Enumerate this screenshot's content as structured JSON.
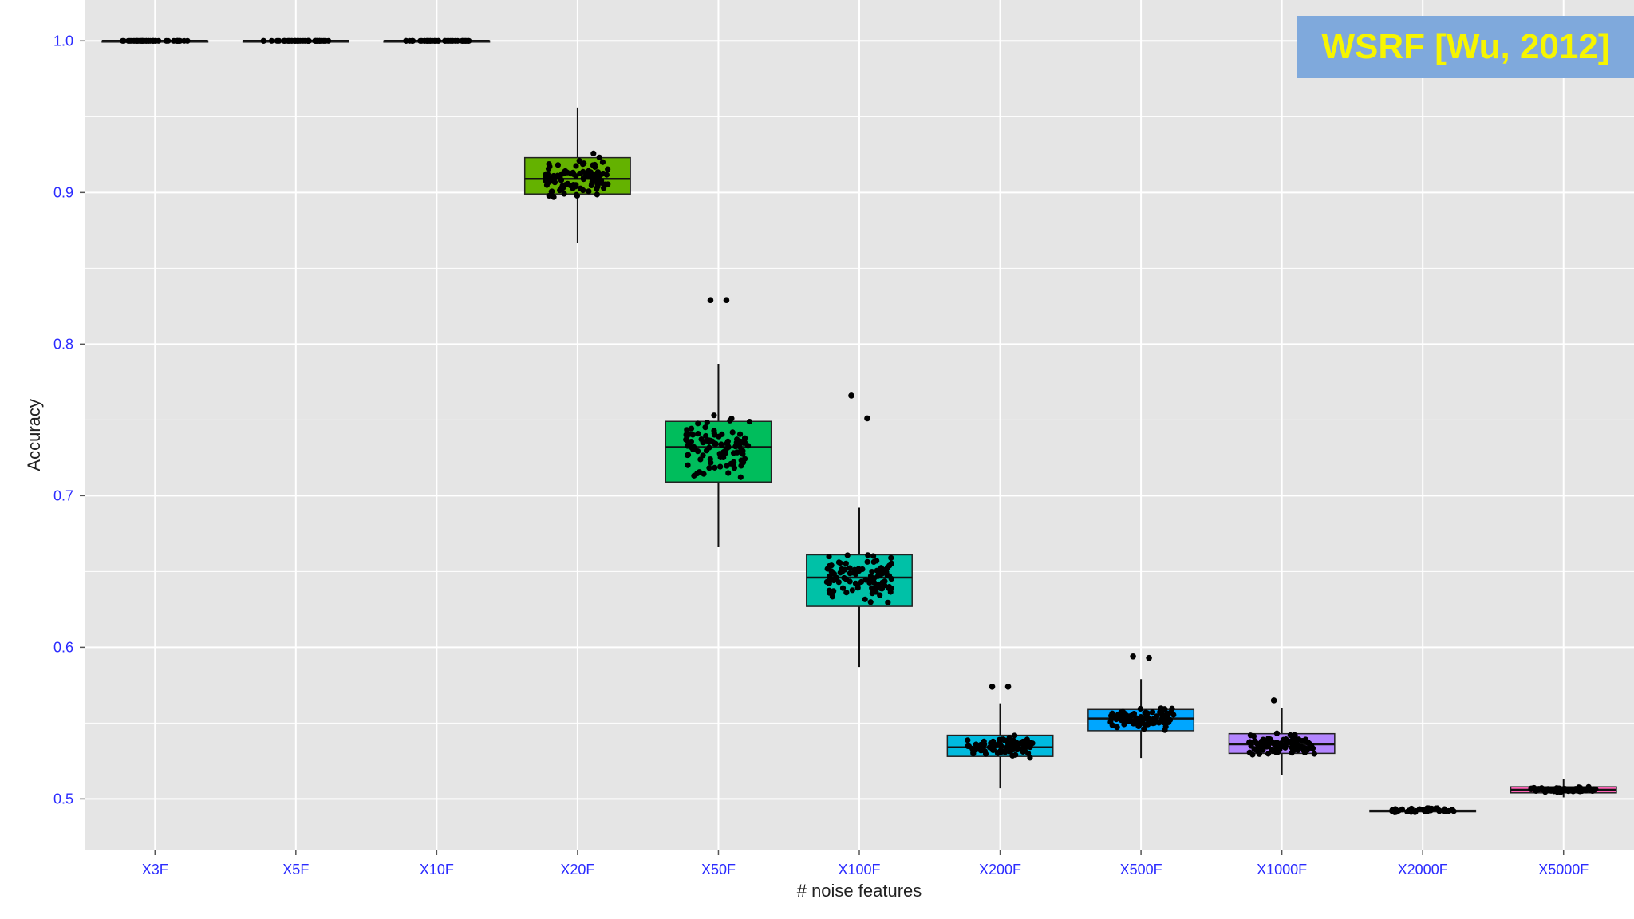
{
  "colors": {
    "panel_bg": "#e5e5e5",
    "grid": "#ffffff",
    "tick_text": "#2b2bff",
    "badge_bg": "#7fa9dc",
    "badge_text": "#f7f500",
    "point": "#000000"
  },
  "annotation": {
    "text": "WSRF [Wu, 2012]"
  },
  "chart_data": {
    "type": "boxplot",
    "title": "",
    "xlabel": "# noise features",
    "ylabel": "Accuracy",
    "ylim": [
      0.466,
      1.027
    ],
    "yticks": [
      "0.5",
      "0.6",
      "0.7",
      "0.8",
      "0.9",
      "1.0"
    ],
    "grid": true,
    "categories": [
      "X3F",
      "X5F",
      "X10F",
      "X20F",
      "X50F",
      "X100F",
      "X200F",
      "X500F",
      "X1000F",
      "X2000F",
      "X5000F"
    ],
    "boxes": [
      {
        "category": "X3F",
        "q1": 1.0,
        "median": 1.0,
        "q3": 1.0,
        "whisker_low": 1.0,
        "whisker_high": 1.0,
        "fill": "#f8766d",
        "n_points": 40,
        "outliers": []
      },
      {
        "category": "X5F",
        "q1": 1.0,
        "median": 1.0,
        "q3": 1.0,
        "whisker_low": 1.0,
        "whisker_high": 1.0,
        "fill": "#db8e00",
        "n_points": 40,
        "outliers": []
      },
      {
        "category": "X10F",
        "q1": 1.0,
        "median": 1.0,
        "q3": 1.0,
        "whisker_low": 1.0,
        "whisker_high": 1.0,
        "fill": "#aea200",
        "n_points": 40,
        "outliers": []
      },
      {
        "category": "X20F",
        "q1": 0.899,
        "median": 0.909,
        "q3": 0.923,
        "whisker_low": 0.867,
        "whisker_high": 0.956,
        "fill": "#64b200",
        "n_points": 100,
        "outliers": []
      },
      {
        "category": "X50F",
        "q1": 0.709,
        "median": 0.732,
        "q3": 0.749,
        "whisker_low": 0.666,
        "whisker_high": 0.787,
        "fill": "#00bd5c",
        "n_points": 100,
        "outliers": [
          0.829,
          0.829
        ]
      },
      {
        "category": "X100F",
        "q1": 0.627,
        "median": 0.646,
        "q3": 0.661,
        "whisker_low": 0.587,
        "whisker_high": 0.692,
        "fill": "#00c1a7",
        "n_points": 100,
        "outliers": [
          0.766,
          0.751
        ]
      },
      {
        "category": "X200F",
        "q1": 0.528,
        "median": 0.534,
        "q3": 0.542,
        "whisker_low": 0.507,
        "whisker_high": 0.563,
        "fill": "#00badE",
        "n_points": 100,
        "outliers": [
          0.574,
          0.574
        ]
      },
      {
        "category": "X500F",
        "q1": 0.545,
        "median": 0.553,
        "q3": 0.559,
        "whisker_low": 0.527,
        "whisker_high": 0.579,
        "fill": "#00a6ff",
        "n_points": 100,
        "outliers": [
          0.594,
          0.593
        ]
      },
      {
        "category": "X1000F",
        "q1": 0.53,
        "median": 0.536,
        "q3": 0.543,
        "whisker_low": 0.516,
        "whisker_high": 0.56,
        "fill": "#b385ff",
        "n_points": 100,
        "outliers": [
          0.565
        ]
      },
      {
        "category": "X2000F",
        "q1": 0.4915,
        "median": 0.492,
        "q3": 0.4925,
        "whisker_low": 0.491,
        "whisker_high": 0.494,
        "fill": "#ef67eb",
        "n_points": 40,
        "outliers": []
      },
      {
        "category": "X5000F",
        "q1": 0.504,
        "median": 0.506,
        "q3": 0.508,
        "whisker_low": 0.501,
        "whisker_high": 0.513,
        "fill": "#ff63b6",
        "n_points": 80,
        "outliers": []
      }
    ]
  }
}
